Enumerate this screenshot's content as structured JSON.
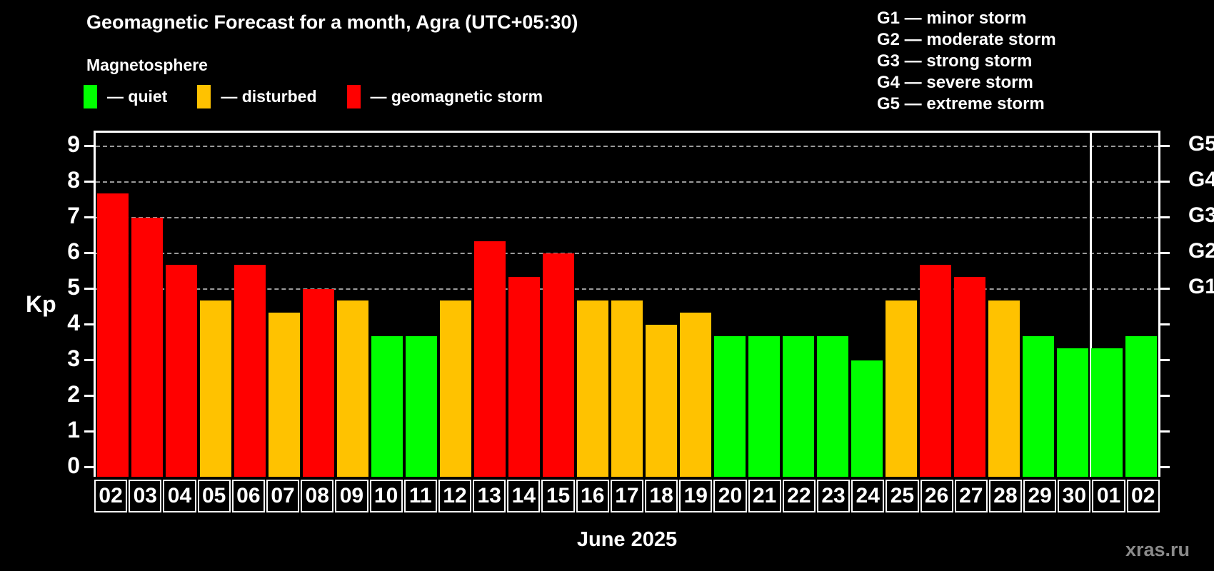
{
  "header": {
    "title": "Geomagnetic Forecast for a month, Agra (UTC+05:30)",
    "subtitle": "Magnetosphere"
  },
  "legend_items": [
    {
      "key": "quiet",
      "label": "— quiet"
    },
    {
      "key": "disturbed",
      "label": "— disturbed"
    },
    {
      "key": "storm",
      "label": "— geomagnetic storm"
    }
  ],
  "g_legend_lines": [
    "G1 — minor storm",
    "G2 — moderate storm",
    "G3 — strong storm",
    "G4 — severe storm",
    "G5 — extreme storm"
  ],
  "watermark": "xras.ru",
  "colors": {
    "quiet": "#00ff00",
    "disturbed": "#ffc200",
    "storm": "#ff0000",
    "axis": "#ffffff",
    "grid": "#9a9a9a",
    "background": "#000000",
    "watermark": "#8a8a8a"
  },
  "chart_data": {
    "type": "bar",
    "title": "Geomagnetic Forecast for a month, Agra (UTC+05:30)",
    "subtitle": "Magnetosphere",
    "xlabel": "June 2025",
    "ylabel": "Kp",
    "ylim": [
      0,
      9.4
    ],
    "yticks": [
      0,
      1,
      2,
      3,
      4,
      5,
      6,
      7,
      8,
      9
    ],
    "gridlines_at": [
      5,
      6,
      7,
      8,
      9
    ],
    "grid": "dashed horizontal at storm levels only",
    "legend_position": "top",
    "right_axis_labels": [
      {
        "kp": 5,
        "label": "G1"
      },
      {
        "kp": 6,
        "label": "G2"
      },
      {
        "kp": 7,
        "label": "G3"
      },
      {
        "kp": 8,
        "label": "G4"
      },
      {
        "kp": 9,
        "label": "G5"
      }
    ],
    "categories": [
      "02",
      "03",
      "04",
      "05",
      "06",
      "07",
      "08",
      "09",
      "10",
      "11",
      "12",
      "13",
      "14",
      "15",
      "16",
      "17",
      "18",
      "19",
      "20",
      "21",
      "22",
      "23",
      "24",
      "25",
      "26",
      "27",
      "28",
      "29",
      "30",
      "01",
      "02"
    ],
    "values": [
      7.67,
      7.0,
      5.67,
      4.67,
      5.67,
      4.33,
      5.0,
      4.67,
      3.67,
      3.67,
      4.67,
      6.33,
      5.33,
      6.0,
      4.67,
      4.67,
      4.0,
      4.33,
      3.67,
      3.67,
      3.67,
      3.67,
      3.0,
      4.67,
      5.67,
      5.33,
      4.67,
      3.67,
      3.33,
      3.33,
      3.67
    ],
    "levels": [
      "storm",
      "storm",
      "storm",
      "disturbed",
      "storm",
      "disturbed",
      "storm",
      "disturbed",
      "quiet",
      "quiet",
      "disturbed",
      "storm",
      "storm",
      "storm",
      "disturbed",
      "disturbed",
      "disturbed",
      "disturbed",
      "quiet",
      "quiet",
      "quiet",
      "quiet",
      "quiet",
      "disturbed",
      "storm",
      "storm",
      "disturbed",
      "quiet",
      "quiet",
      "quiet",
      "quiet"
    ],
    "month_separator_after_index": 28
  }
}
